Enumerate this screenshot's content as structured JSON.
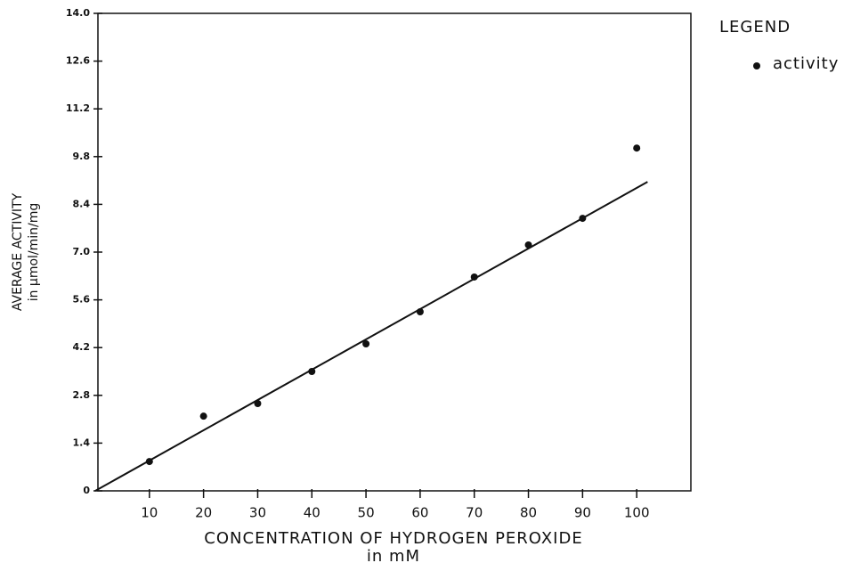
{
  "chart_data": {
    "type": "scatter",
    "x_label": "CONCENTRATION OF HYDROGEN PEROXIDE",
    "x_label_unit": "in mM",
    "y_label": "AVERAGE ACTIVITY",
    "y_label_unit": "in µmol/min/mg",
    "legend_title": "LEGEND",
    "legend_position": "upper right outside",
    "series": [
      {
        "name": "activity",
        "color": "#111111",
        "x": [
          10,
          20,
          30,
          40,
          50,
          60,
          70,
          80,
          90,
          100
        ],
        "values": [
          0.86,
          2.19,
          2.56,
          3.5,
          4.31,
          5.25,
          6.27,
          7.21,
          7.99,
          10.05
        ]
      }
    ],
    "trend_line": {
      "color": "#111111",
      "x": [
        0,
        102
      ],
      "values": [
        0,
        9.06
      ]
    },
    "xlim": [
      0,
      110
    ],
    "ylim": [
      0,
      14
    ],
    "xticks": [
      10,
      20,
      30,
      40,
      50,
      60,
      70,
      80,
      90,
      100
    ],
    "yticks": [
      0,
      1.4,
      2.8,
      4.2,
      5.6,
      {
        "value": 7,
        "label": "7.0"
      },
      8.4,
      9.8,
      11.2,
      12.6,
      {
        "value": 14,
        "label": "14.0"
      }
    ],
    "grid": false
  }
}
